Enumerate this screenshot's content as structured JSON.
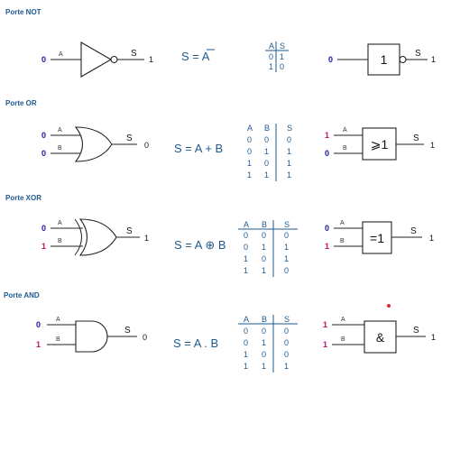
{
  "colors": {
    "zero": "#1a1aa0",
    "one": "#c0136e",
    "accent": "#1f5a8f",
    "dot": "#e0242c"
  },
  "sections": [
    {
      "key": "not",
      "title": "Porte NOT",
      "inputs": [
        {
          "label": "A",
          "value": "0"
        }
      ],
      "output_label": "S",
      "output_value": "1",
      "equation": "S = A",
      "overline_letter": "A",
      "table_headers": [
        "A",
        "S"
      ],
      "table_rows": [
        [
          "0",
          "1"
        ],
        [
          "1",
          "0"
        ]
      ],
      "box_symbol": "1",
      "box_inputs": [
        {
          "label": "",
          "value": "0"
        }
      ],
      "box_output_label": "S",
      "box_output_value": "1"
    },
    {
      "key": "or",
      "title": "Porte OR",
      "inputs": [
        {
          "label": "A",
          "value": "0"
        },
        {
          "label": "B",
          "value": "0"
        }
      ],
      "output_label": "S",
      "output_value": "0",
      "equation": "S = A + B",
      "table_headers": [
        "A",
        "B",
        "S"
      ],
      "table_rows": [
        [
          "0",
          "0",
          "0"
        ],
        [
          "0",
          "1",
          "1"
        ],
        [
          "1",
          "0",
          "1"
        ],
        [
          "1",
          "1",
          "1"
        ]
      ],
      "box_symbol": "⩾1",
      "box_inputs": [
        {
          "label": "A",
          "value": "1"
        },
        {
          "label": "B",
          "value": "0"
        }
      ],
      "box_output_label": "S",
      "box_output_value": "1"
    },
    {
      "key": "xor",
      "title": "Porte XOR",
      "inputs": [
        {
          "label": "A",
          "value": "0"
        },
        {
          "label": "B",
          "value": "1"
        }
      ],
      "output_label": "S",
      "output_value": "1",
      "equation": "S = A ⊕ B",
      "table_headers": [
        "A",
        "B",
        "S"
      ],
      "table_rows": [
        [
          "0",
          "0",
          "0"
        ],
        [
          "0",
          "1",
          "1"
        ],
        [
          "1",
          "0",
          "1"
        ],
        [
          "1",
          "1",
          "0"
        ]
      ],
      "box_symbol": "=1",
      "box_inputs": [
        {
          "label": "A",
          "value": "0"
        },
        {
          "label": "B",
          "value": "1"
        }
      ],
      "box_output_label": "S",
      "box_output_value": "1"
    },
    {
      "key": "and",
      "title": "Porte AND",
      "inputs": [
        {
          "label": "A",
          "value": "0"
        },
        {
          "label": "B",
          "value": "1"
        }
      ],
      "output_label": "S",
      "output_value": "0",
      "equation": "S = A . B",
      "table_headers": [
        "A",
        "B",
        "S"
      ],
      "table_rows": [
        [
          "0",
          "0",
          "0"
        ],
        [
          "0",
          "1",
          "0"
        ],
        [
          "1",
          "0",
          "0"
        ],
        [
          "1",
          "1",
          "1"
        ]
      ],
      "box_symbol": "&",
      "box_inputs": [
        {
          "label": "A",
          "value": "1"
        },
        {
          "label": "B",
          "value": "1"
        }
      ],
      "box_output_label": "S",
      "box_output_value": "1"
    }
  ]
}
